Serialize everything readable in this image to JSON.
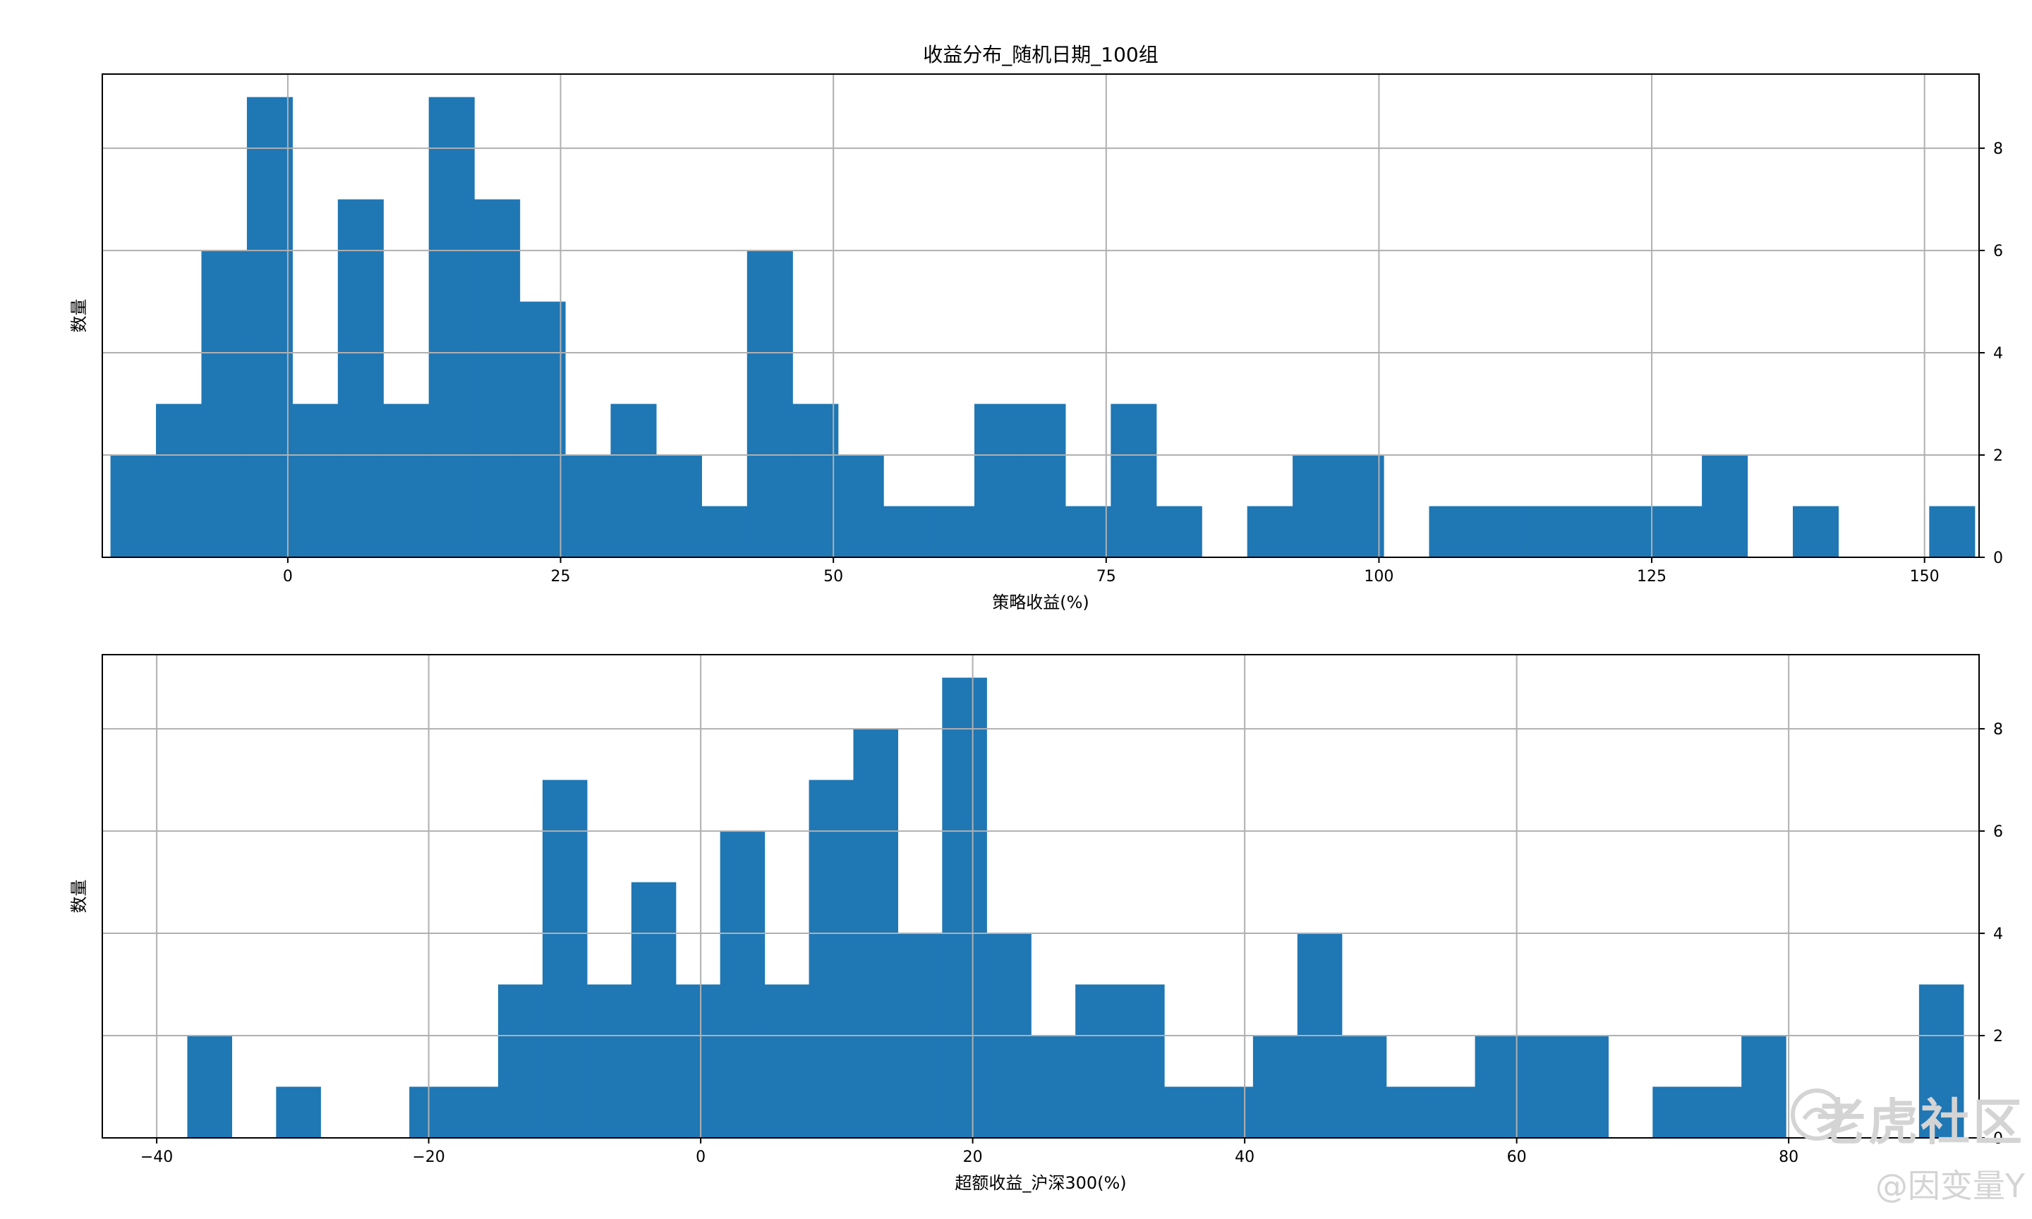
{
  "chart_data": [
    {
      "type": "histogram",
      "title": "收益分布_随机日期_100组",
      "xlabel": "策略收益(%)",
      "ylabel": "数量",
      "xlim": [
        -17,
        155
      ],
      "ylim": [
        0,
        9.45
      ],
      "xticks": [
        0,
        25,
        50,
        75,
        100,
        125,
        150
      ],
      "yticks": [
        0,
        2,
        4,
        6,
        8
      ],
      "y_axis_side": "right",
      "grid": true,
      "bar_color": "#1f77b4",
      "bin_start": -16.25,
      "bin_width": 4.167,
      "counts": [
        2,
        3,
        6,
        9,
        3,
        7,
        3,
        9,
        7,
        5,
        2,
        3,
        2,
        1,
        6,
        3,
        2,
        1,
        1,
        3,
        3,
        1,
        3,
        1,
        0,
        1,
        2,
        2,
        0,
        1,
        1,
        1,
        1,
        1,
        1,
        2,
        0,
        1,
        0,
        0,
        1
      ]
    },
    {
      "type": "histogram",
      "title": "",
      "xlabel": "超额收益_沪深300(%)",
      "ylabel": "数量",
      "xlim": [
        -44,
        94
      ],
      "ylim": [
        0,
        9.45
      ],
      "xticks": [
        -40,
        -20,
        0,
        20,
        40,
        60,
        80
      ],
      "yticks": [
        0,
        2,
        4,
        6,
        8
      ],
      "y_axis_side": "right",
      "grid": true,
      "bar_color": "#1f77b4",
      "bin_start": -37.75,
      "bin_width": 3.265,
      "counts": [
        2,
        0,
        1,
        0,
        0,
        1,
        1,
        3,
        7,
        3,
        5,
        3,
        6,
        3,
        7,
        8,
        4,
        9,
        4,
        2,
        3,
        3,
        1,
        1,
        2,
        4,
        2,
        1,
        1,
        2,
        2,
        2,
        0,
        1,
        1,
        2,
        0,
        0,
        0,
        3
      ]
    }
  ],
  "watermark": {
    "brand": "老虎社区",
    "author": "@因变量Y",
    "logo_icon": "tiger-community-logo-icon"
  }
}
